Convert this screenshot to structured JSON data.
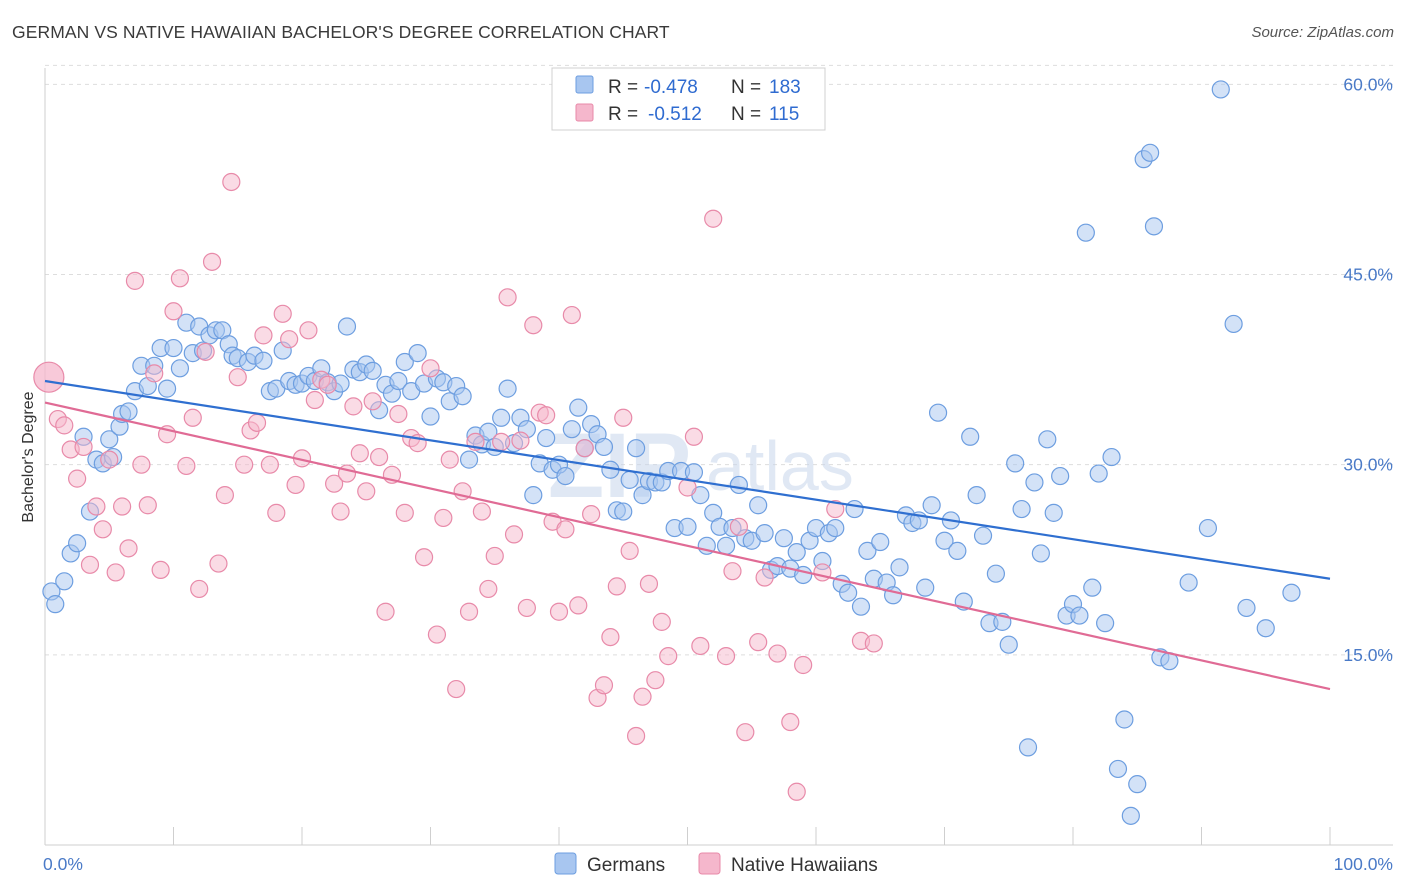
{
  "title": "GERMAN VS NATIVE HAWAIIAN BACHELOR'S DEGREE CORRELATION CHART",
  "source": "Source: ZipAtlas.com",
  "watermark": {
    "zip": "ZIP",
    "atlas": "atlas"
  },
  "legend": {
    "rows": [
      {
        "r_label": "R =",
        "r_value": "-0.478",
        "n_label": "N =",
        "n_value": "183",
        "color": "#a8c6f0"
      },
      {
        "r_label": "R =",
        "r_value": "-0.512",
        "n_label": "N =",
        "n_value": "115",
        "color": "#f5b7cc"
      }
    ]
  },
  "bottom_legend": [
    "Germans",
    "Native Hawaiians"
  ],
  "chart_data": {
    "type": "scatter",
    "title": "GERMAN VS NATIVE HAWAIIAN BACHELOR'S DEGREE CORRELATION CHART",
    "xlabel": "",
    "ylabel": "Bachelor's Degree",
    "xlim": [
      0,
      100
    ],
    "ylim": [
      0,
      62
    ],
    "x_tick_labels": [
      "0.0%",
      "100.0%"
    ],
    "y_ticks": [
      15,
      30,
      45,
      60
    ],
    "y_tick_labels": [
      "15.0%",
      "30.0%",
      "45.0%",
      "60.0%"
    ],
    "grid": "horizontal dashed",
    "legend_position": "top-center",
    "series": [
      {
        "name": "Germans",
        "color": "#a8c6f0",
        "stroke": "#6d9ee0",
        "trend_color": "#2f6fd0",
        "trend": [
          [
            0,
            36.6
          ],
          [
            100,
            21.0
          ]
        ],
        "points": [
          [
            0.5,
            20
          ],
          [
            0.8,
            19
          ],
          [
            1.5,
            20.8
          ],
          [
            2,
            23
          ],
          [
            2.5,
            23.8
          ],
          [
            3,
            32.2
          ],
          [
            3.5,
            26.3
          ],
          [
            4,
            30.4
          ],
          [
            4.5,
            30.1
          ],
          [
            5,
            32
          ],
          [
            5.3,
            30.6
          ],
          [
            5.8,
            33
          ],
          [
            6,
            34
          ],
          [
            6.5,
            34.2
          ],
          [
            7,
            35.8
          ],
          [
            7.5,
            37.8
          ],
          [
            8,
            36.2
          ],
          [
            8.5,
            37.8
          ],
          [
            9,
            39.2
          ],
          [
            9.5,
            36
          ],
          [
            10,
            39.2
          ],
          [
            10.5,
            37.6
          ],
          [
            11,
            41.2
          ],
          [
            11.5,
            38.8
          ],
          [
            12,
            40.9
          ],
          [
            12.3,
            39
          ],
          [
            12.8,
            40.2
          ],
          [
            13.3,
            40.6
          ],
          [
            13.8,
            40.6
          ],
          [
            14.3,
            39.5
          ],
          [
            14.6,
            38.6
          ],
          [
            15,
            38.4
          ],
          [
            15.8,
            38.1
          ],
          [
            16.3,
            38.6
          ],
          [
            17,
            38.2
          ],
          [
            17.5,
            35.8
          ],
          [
            18,
            36
          ],
          [
            18.5,
            39
          ],
          [
            19,
            36.6
          ],
          [
            19.5,
            36.3
          ],
          [
            20,
            36.4
          ],
          [
            20.5,
            37
          ],
          [
            21,
            36.6
          ],
          [
            21.5,
            37.6
          ],
          [
            22,
            36.5
          ],
          [
            22.5,
            35.8
          ],
          [
            23,
            36.4
          ],
          [
            23.5,
            40.9
          ],
          [
            24,
            37.5
          ],
          [
            24.5,
            37.3
          ],
          [
            25,
            37.9
          ],
          [
            25.5,
            37.4
          ],
          [
            26,
            34.3
          ],
          [
            26.5,
            36.3
          ],
          [
            27,
            35.6
          ],
          [
            27.5,
            36.6
          ],
          [
            28,
            38.1
          ],
          [
            28.5,
            35.8
          ],
          [
            29,
            38.8
          ],
          [
            29.5,
            36.4
          ],
          [
            30,
            33.8
          ],
          [
            30.5,
            36.8
          ],
          [
            31,
            36.5
          ],
          [
            31.5,
            35
          ],
          [
            32,
            36.2
          ],
          [
            32.5,
            35.4
          ],
          [
            33,
            30.4
          ],
          [
            33.5,
            32.3
          ],
          [
            34,
            31.6
          ],
          [
            34.5,
            32.6
          ],
          [
            35,
            31.4
          ],
          [
            35.5,
            33.7
          ],
          [
            36,
            36
          ],
          [
            36.5,
            31.7
          ],
          [
            37,
            33.7
          ],
          [
            37.5,
            32.8
          ],
          [
            38,
            27.6
          ],
          [
            38.5,
            30.1
          ],
          [
            39,
            32.1
          ],
          [
            39.5,
            29.6
          ],
          [
            40,
            30
          ],
          [
            40.5,
            29.1
          ],
          [
            41,
            32.8
          ],
          [
            41.5,
            34.5
          ],
          [
            42,
            31.3
          ],
          [
            42.5,
            33.2
          ],
          [
            43,
            32.4
          ],
          [
            43.5,
            31.4
          ],
          [
            44,
            29.6
          ],
          [
            44.5,
            26.4
          ],
          [
            45,
            26.3
          ],
          [
            45.5,
            28.8
          ],
          [
            46,
            31.3
          ],
          [
            46.5,
            27.6
          ],
          [
            47,
            28.7
          ],
          [
            47.5,
            28.6
          ],
          [
            48,
            28.6
          ],
          [
            48.5,
            29.5
          ],
          [
            49,
            25
          ],
          [
            49.5,
            29.5
          ],
          [
            50,
            25.1
          ],
          [
            50.5,
            29.4
          ],
          [
            51,
            27.6
          ],
          [
            51.5,
            23.6
          ],
          [
            52,
            26.2
          ],
          [
            52.5,
            25.1
          ],
          [
            53,
            23.6
          ],
          [
            53.5,
            25
          ],
          [
            54,
            28.4
          ],
          [
            54.5,
            24.2
          ],
          [
            55,
            24
          ],
          [
            55.5,
            26.8
          ],
          [
            56,
            24.6
          ],
          [
            56.5,
            21.7
          ],
          [
            57,
            22
          ],
          [
            57.5,
            24.2
          ],
          [
            58,
            21.8
          ],
          [
            58.5,
            23.1
          ],
          [
            59,
            21.3
          ],
          [
            59.5,
            24
          ],
          [
            60,
            25
          ],
          [
            60.5,
            22.4
          ],
          [
            61,
            24.6
          ],
          [
            61.5,
            25
          ],
          [
            62,
            20.6
          ],
          [
            62.5,
            19.9
          ],
          [
            63,
            26.5
          ],
          [
            63.5,
            18.8
          ],
          [
            64,
            23.2
          ],
          [
            64.5,
            21
          ],
          [
            65,
            23.9
          ],
          [
            65.5,
            20.7
          ],
          [
            66,
            19.7
          ],
          [
            66.5,
            21.9
          ],
          [
            67,
            26
          ],
          [
            67.5,
            25.4
          ],
          [
            68,
            25.6
          ],
          [
            68.5,
            20.3
          ],
          [
            69,
            26.8
          ],
          [
            69.5,
            34.1
          ],
          [
            70,
            24
          ],
          [
            70.5,
            25.6
          ],
          [
            71,
            23.2
          ],
          [
            71.5,
            19.2
          ],
          [
            72,
            32.2
          ],
          [
            72.5,
            27.6
          ],
          [
            73,
            24.4
          ],
          [
            73.5,
            17.5
          ],
          [
            74,
            21.4
          ],
          [
            74.5,
            17.6
          ],
          [
            75,
            15.8
          ],
          [
            75.5,
            30.1
          ],
          [
            76,
            26.5
          ],
          [
            76.5,
            7.7
          ],
          [
            77,
            28.6
          ],
          [
            77.5,
            23
          ],
          [
            78,
            32
          ],
          [
            78.5,
            26.2
          ],
          [
            79,
            29.1
          ],
          [
            79.5,
            18.1
          ],
          [
            80,
            19
          ],
          [
            80.5,
            18.1
          ],
          [
            81,
            48.3
          ],
          [
            81.5,
            20.3
          ],
          [
            82,
            29.3
          ],
          [
            82.5,
            17.5
          ],
          [
            83,
            30.6
          ],
          [
            83.5,
            6
          ],
          [
            84,
            9.9
          ],
          [
            84.5,
            2.3
          ],
          [
            85,
            4.8
          ],
          [
            85.5,
            54.1
          ],
          [
            86,
            54.6
          ],
          [
            86.3,
            48.8
          ],
          [
            86.8,
            14.8
          ],
          [
            87.5,
            14.5
          ],
          [
            89,
            20.7
          ],
          [
            90.5,
            25
          ],
          [
            91.5,
            59.6
          ],
          [
            92.5,
            41.1
          ],
          [
            93.5,
            18.7
          ],
          [
            95,
            17.1
          ],
          [
            97,
            19.9
          ]
        ]
      },
      {
        "name": "Native Hawaiians",
        "color": "#f5b7cc",
        "stroke": "#e88aa9",
        "trend_color": "#e06b95",
        "trend": [
          [
            0,
            34.9
          ],
          [
            100,
            12.3
          ]
        ],
        "points": [
          [
            0.3,
            36.9
          ],
          [
            1,
            33.6
          ],
          [
            1.5,
            33.1
          ],
          [
            2,
            31.2
          ],
          [
            2.5,
            28.9
          ],
          [
            3,
            31.4
          ],
          [
            3.5,
            22.1
          ],
          [
            4,
            26.7
          ],
          [
            4.5,
            24.9
          ],
          [
            5,
            30.4
          ],
          [
            5.5,
            21.5
          ],
          [
            6,
            26.7
          ],
          [
            6.5,
            23.4
          ],
          [
            7,
            44.5
          ],
          [
            7.5,
            30
          ],
          [
            8,
            26.8
          ],
          [
            8.5,
            37.2
          ],
          [
            9,
            21.7
          ],
          [
            9.5,
            32.4
          ],
          [
            10,
            42.1
          ],
          [
            10.5,
            44.7
          ],
          [
            11,
            29.9
          ],
          [
            11.5,
            33.7
          ],
          [
            12,
            20.2
          ],
          [
            12.5,
            38.9
          ],
          [
            13,
            46
          ],
          [
            13.5,
            22.2
          ],
          [
            14,
            27.6
          ],
          [
            14.5,
            52.3
          ],
          [
            15,
            36.9
          ],
          [
            15.5,
            30
          ],
          [
            16,
            32.7
          ],
          [
            16.5,
            33.3
          ],
          [
            17,
            40.2
          ],
          [
            17.5,
            30
          ],
          [
            18,
            26.2
          ],
          [
            18.5,
            41.9
          ],
          [
            19,
            39.9
          ],
          [
            19.5,
            28.4
          ],
          [
            20,
            30.5
          ],
          [
            20.5,
            40.6
          ],
          [
            21,
            35.1
          ],
          [
            21.5,
            36.7
          ],
          [
            22,
            36.3
          ],
          [
            22.5,
            28.5
          ],
          [
            23,
            26.3
          ],
          [
            23.5,
            29.3
          ],
          [
            24,
            34.6
          ],
          [
            24.5,
            30.9
          ],
          [
            25,
            27.9
          ],
          [
            25.5,
            35
          ],
          [
            26,
            30.6
          ],
          [
            26.5,
            18.4
          ],
          [
            27,
            29.2
          ],
          [
            27.5,
            34
          ],
          [
            28,
            26.2
          ],
          [
            28.5,
            32.1
          ],
          [
            29,
            31.7
          ],
          [
            29.5,
            22.7
          ],
          [
            30,
            37.6
          ],
          [
            30.5,
            16.6
          ],
          [
            31,
            25.8
          ],
          [
            31.5,
            30.4
          ],
          [
            32,
            12.3
          ],
          [
            32.5,
            27.9
          ],
          [
            33,
            18.4
          ],
          [
            33.5,
            31.8
          ],
          [
            34,
            26.3
          ],
          [
            34.5,
            20.2
          ],
          [
            35,
            22.8
          ],
          [
            35.5,
            31.8
          ],
          [
            36,
            43.2
          ],
          [
            36.5,
            24.5
          ],
          [
            37,
            31.9
          ],
          [
            37.5,
            18.7
          ],
          [
            38,
            41
          ],
          [
            38.5,
            34.1
          ],
          [
            39,
            33.9
          ],
          [
            39.5,
            25.5
          ],
          [
            40,
            18.4
          ],
          [
            40.5,
            24.9
          ],
          [
            41,
            41.8
          ],
          [
            41.5,
            18.9
          ],
          [
            42,
            31.3
          ],
          [
            42.5,
            26.1
          ],
          [
            43,
            11.6
          ],
          [
            43.5,
            12.6
          ],
          [
            44,
            16.4
          ],
          [
            44.5,
            20.4
          ],
          [
            45,
            33.7
          ],
          [
            45.5,
            23.2
          ],
          [
            46,
            8.6
          ],
          [
            46.5,
            11.7
          ],
          [
            47,
            20.6
          ],
          [
            47.5,
            13
          ],
          [
            48,
            17.6
          ],
          [
            48.5,
            14.9
          ],
          [
            50,
            28.2
          ],
          [
            50.5,
            32.2
          ],
          [
            51,
            15.7
          ],
          [
            52,
            49.4
          ],
          [
            53,
            14.9
          ],
          [
            53.5,
            21.6
          ],
          [
            54,
            25.1
          ],
          [
            54.5,
            8.9
          ],
          [
            55.5,
            16
          ],
          [
            56,
            21.1
          ],
          [
            57,
            15.1
          ],
          [
            58,
            9.7
          ],
          [
            58.5,
            4.2
          ],
          [
            59,
            14.2
          ],
          [
            60.5,
            21.5
          ],
          [
            61.5,
            26.5
          ],
          [
            63.5,
            16.1
          ],
          [
            64.5,
            15.9
          ]
        ]
      }
    ]
  }
}
